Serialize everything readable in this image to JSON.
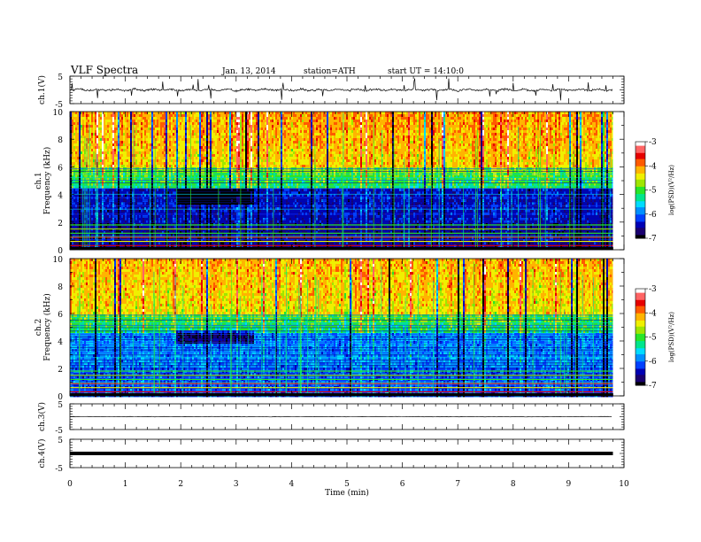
{
  "header": {
    "title": "VLF  Spectra",
    "date": "Jan. 13, 2014",
    "station": "station=ATH",
    "start": "start  UT =   14:10:0"
  },
  "chart_data": [
    {
      "type": "line",
      "id": "ch1-waveform",
      "ylabel": "ch.1(V)",
      "yticks": [
        "5",
        "-5"
      ],
      "ylim": [
        -5,
        5
      ],
      "xlim": [
        0,
        10
      ],
      "series": [
        {
          "values": "noisy waveform, baseline near 0 V with frequent spikes toward +3 and -4 V, data ending ~9.8 min"
        }
      ]
    },
    {
      "type": "heatmap",
      "id": "ch1-spectrogram",
      "ylabel": "ch.1\nFrequency (kHz)",
      "ylabel_lines": [
        "ch.1",
        "Frequency  (kHz)"
      ],
      "yticks": [
        "0",
        "2",
        "4",
        "6",
        "8",
        "10"
      ],
      "ylim": [
        0,
        10
      ],
      "xlim": [
        0,
        10
      ],
      "data_end_min": 9.8,
      "colorbar": {
        "label": "log(PSD)(V²/Hz)",
        "ticks": [
          "-3",
          "-4",
          "-5",
          "-6",
          "-7"
        ],
        "range": [
          -7,
          -3
        ]
      },
      "features": {
        "high_band_kHz": [
          6,
          10
        ],
        "high_band_logpsd": -4.3,
        "mid_band_kHz": [
          4.5,
          6
        ],
        "mid_band_logpsd": -5.2,
        "low_band_kHz": [
          2,
          4.5
        ],
        "low_band_logpsd": -6.4,
        "deep_min_window_min": [
          1.9,
          3.3
        ],
        "deep_min_kHz": [
          3.3,
          4.4
        ],
        "hum_lines_kHz": [
          0.3,
          0.6,
          0.9,
          1.2,
          1.5,
          1.8
        ]
      }
    },
    {
      "type": "heatmap",
      "id": "ch2-spectrogram",
      "ylabel": "ch.2\nFrequency (kHz)",
      "ylabel_lines": [
        "ch.2",
        "Frequency  (kHz)"
      ],
      "yticks": [
        "0",
        "2",
        "4",
        "6",
        "8",
        "10"
      ],
      "ylim": [
        0,
        10
      ],
      "xlim": [
        0,
        10
      ],
      "data_end_min": 9.8,
      "colorbar": {
        "label": "log(PSD)(V²/Hz)",
        "ticks": [
          "-3",
          "-4",
          "-5",
          "-6",
          "-7"
        ],
        "range": [
          -7,
          -3
        ]
      },
      "features": {
        "high_band_kHz": [
          6,
          10
        ],
        "high_band_logpsd": -4.4,
        "mid_band_kHz": [
          4.5,
          6
        ],
        "mid_band_logpsd": -5.3,
        "low_band_kHz": [
          2,
          4.5
        ],
        "low_band_logpsd": -5.9,
        "deep_min_window_min": [
          1.9,
          3.3
        ],
        "deep_min_kHz": [
          3.8,
          4.7
        ],
        "hum_lines_kHz": [
          0.3,
          0.6,
          0.9,
          1.2,
          1.5,
          1.8
        ]
      }
    },
    {
      "type": "line",
      "id": "ch3-waveform",
      "ylabel": "ch.3(V)",
      "yticks": [
        "5",
        "-5"
      ],
      "ylim": [
        -5,
        5
      ],
      "xlim": [
        0,
        10
      ],
      "series": [
        {
          "values": "flat line near 0 V"
        }
      ]
    },
    {
      "type": "line",
      "id": "ch4-waveform",
      "ylabel": "ch.4(V)",
      "yticks": [
        "5",
        "-5"
      ],
      "ylim": [
        -5,
        5
      ],
      "xlim": [
        0,
        10
      ],
      "series": [
        {
          "values": "thick flat band near 0 V"
        }
      ]
    }
  ],
  "x_axis": {
    "label": "Time  (min)",
    "ticks": [
      "0",
      "1",
      "2",
      "3",
      "4",
      "5",
      "6",
      "7",
      "8",
      "9",
      "10"
    ],
    "range": [
      0,
      10
    ]
  },
  "colors": {
    "colormap": [
      "#000000",
      "#1a0070",
      "#0000b4",
      "#0040ff",
      "#0090ff",
      "#00dcff",
      "#00e68c",
      "#28e628",
      "#a0e600",
      "#f0f000",
      "#ffb400",
      "#ff5a00",
      "#e60000",
      "#ff6464",
      "#ffffff"
    ]
  }
}
